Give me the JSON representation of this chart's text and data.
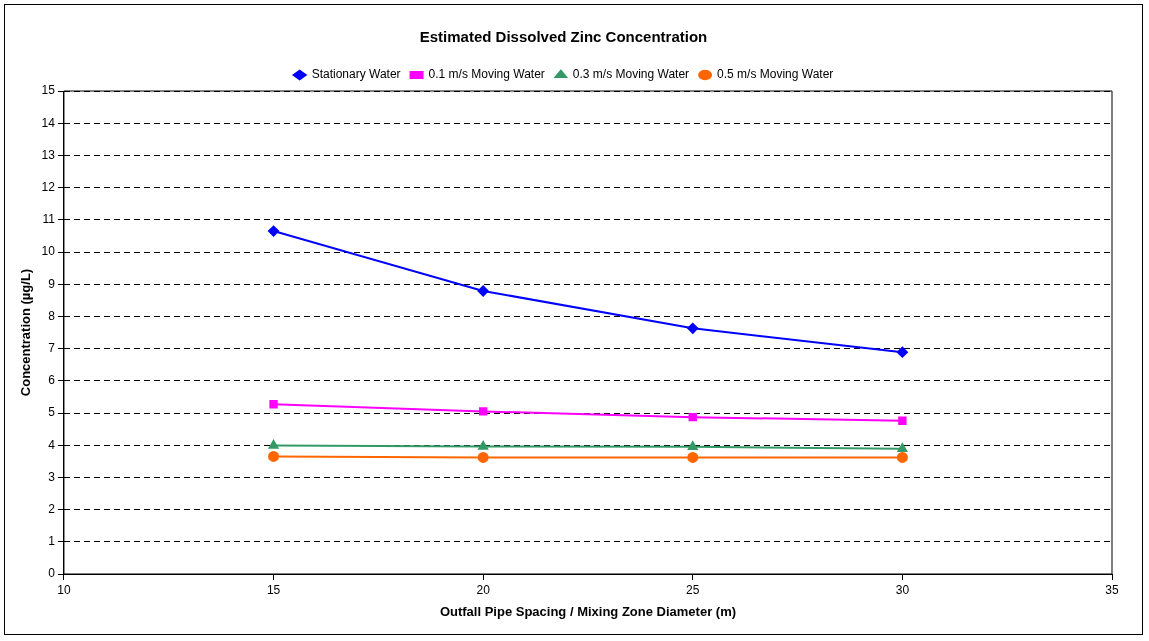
{
  "chart_data": {
    "type": "line",
    "title": "Estimated Dissolved Zinc Concentration",
    "xlabel": "Outfall Pipe Spacing / Mixing Zone Diameter (m)",
    "ylabel": "Concentration (µg/L)",
    "x": [
      15,
      20,
      25,
      30
    ],
    "series": [
      {
        "name": "Stationary Water",
        "color": "#0000ff",
        "marker": "diamond",
        "values": [
          10.65,
          8.79,
          7.63,
          6.89
        ]
      },
      {
        "name": "0.1 m/s Moving Water",
        "color": "#ff00ff",
        "marker": "square",
        "values": [
          5.27,
          5.05,
          4.87,
          4.76
        ]
      },
      {
        "name": "0.3 m/s Moving Water",
        "color": "#339966",
        "marker": "triangle",
        "values": [
          3.99,
          3.96,
          3.95,
          3.89
        ]
      },
      {
        "name": "0.5 m/s Moving Water",
        "color": "#ff6600",
        "marker": "circle",
        "values": [
          3.65,
          3.62,
          3.62,
          3.62
        ]
      }
    ],
    "xlim": [
      10,
      35
    ],
    "xticks": [
      10,
      15,
      20,
      25,
      30,
      35
    ],
    "ylim": [
      0,
      15
    ],
    "yticks": [
      0,
      1,
      2,
      3,
      4,
      5,
      6,
      7,
      8,
      9,
      10,
      11,
      12,
      13,
      14,
      15
    ],
    "grid": "y",
    "legend": "top",
    "line_style": "solid"
  }
}
